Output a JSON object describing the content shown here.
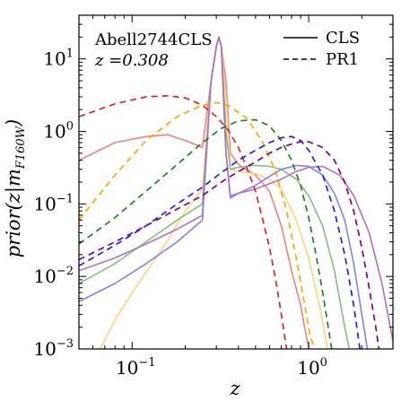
{
  "chart_data": {
    "type": "line",
    "xlabel": "z",
    "ylabel": "prior(z|m_F160W)",
    "xscale": "log",
    "yscale": "log",
    "xlim": [
      0.05,
      3.0
    ],
    "ylim": [
      0.001,
      40
    ],
    "x_ticks": [
      {
        "base": "10",
        "exp": "−1",
        "value": 0.1
      },
      {
        "base": "10",
        "exp": "0",
        "value": 1
      }
    ],
    "y_ticks": [
      {
        "base": "10",
        "exp": "1",
        "value": 10
      },
      {
        "base": "10",
        "exp": "0",
        "value": 1
      },
      {
        "base": "10",
        "exp": "−1",
        "value": 0.1
      },
      {
        "base": "10",
        "exp": "−2",
        "value": 0.01
      },
      {
        "base": "10",
        "exp": "−3",
        "value": 0.001
      }
    ],
    "annotations": {
      "cluster": "Abell2744CLS",
      "redshift": "z =0.308"
    },
    "legend": {
      "placement": "top-right",
      "entries": [
        {
          "label": "CLS",
          "style": "solid"
        },
        {
          "label": "PR1",
          "style": "dashed"
        }
      ]
    },
    "grid": false,
    "series": [
      {
        "style": "solid",
        "color": "#f08080",
        "points": [
          [
            0.05,
            0.4
          ],
          [
            0.08,
            0.7
          ],
          [
            0.12,
            0.85
          ],
          [
            0.16,
            0.9
          ],
          [
            0.2,
            0.75
          ],
          [
            0.25,
            0.6
          ],
          [
            0.28,
            5
          ],
          [
            0.3,
            15
          ],
          [
            0.31,
            20
          ],
          [
            0.32,
            15
          ],
          [
            0.34,
            5
          ],
          [
            0.36,
            0.5
          ],
          [
            0.4,
            0.35
          ],
          [
            0.5,
            0.25
          ],
          [
            0.6,
            0.15
          ],
          [
            0.7,
            0.05
          ],
          [
            0.8,
            0.012
          ],
          [
            0.9,
            0.004
          ],
          [
            1.0,
            0.001
          ]
        ]
      },
      {
        "style": "solid",
        "color": "#ffd27f",
        "points": [
          [
            0.066,
            0.001
          ],
          [
            0.08,
            0.0025
          ],
          [
            0.1,
            0.006
          ],
          [
            0.15,
            0.025
          ],
          [
            0.2,
            0.08
          ],
          [
            0.25,
            0.16
          ],
          [
            0.28,
            5
          ],
          [
            0.3,
            15
          ],
          [
            0.31,
            20
          ],
          [
            0.32,
            15
          ],
          [
            0.34,
            3
          ],
          [
            0.36,
            0.3
          ],
          [
            0.4,
            0.28
          ],
          [
            0.5,
            0.26
          ],
          [
            0.6,
            0.22
          ],
          [
            0.7,
            0.16
          ],
          [
            0.85,
            0.06
          ],
          [
            1.0,
            0.018
          ],
          [
            1.15,
            0.004
          ],
          [
            1.28,
            0.001
          ]
        ]
      },
      {
        "style": "solid",
        "color": "#80c080",
        "points": [
          [
            0.05,
            0.008
          ],
          [
            0.08,
            0.015
          ],
          [
            0.12,
            0.03
          ],
          [
            0.18,
            0.06
          ],
          [
            0.25,
            0.1
          ],
          [
            0.28,
            5
          ],
          [
            0.3,
            15
          ],
          [
            0.31,
            20
          ],
          [
            0.32,
            15
          ],
          [
            0.34,
            1
          ],
          [
            0.36,
            0.3
          ],
          [
            0.4,
            0.32
          ],
          [
            0.5,
            0.34
          ],
          [
            0.6,
            0.33
          ],
          [
            0.7,
            0.3
          ],
          [
            0.85,
            0.22
          ],
          [
            1.0,
            0.13
          ],
          [
            1.2,
            0.05
          ],
          [
            1.4,
            0.012
          ],
          [
            1.6,
            0.002
          ],
          [
            1.7,
            0.001
          ]
        ]
      },
      {
        "style": "solid",
        "color": "#8080f0",
        "points": [
          [
            0.05,
            0.0045
          ],
          [
            0.08,
            0.008
          ],
          [
            0.12,
            0.015
          ],
          [
            0.18,
            0.03
          ],
          [
            0.25,
            0.06
          ],
          [
            0.28,
            5
          ],
          [
            0.3,
            15
          ],
          [
            0.31,
            20
          ],
          [
            0.32,
            15
          ],
          [
            0.34,
            0.5
          ],
          [
            0.36,
            0.12
          ],
          [
            0.4,
            0.14
          ],
          [
            0.5,
            0.18
          ],
          [
            0.6,
            0.24
          ],
          [
            0.7,
            0.3
          ],
          [
            0.85,
            0.34
          ],
          [
            1.0,
            0.33
          ],
          [
            1.2,
            0.25
          ],
          [
            1.4,
            0.14
          ],
          [
            1.6,
            0.06
          ],
          [
            1.8,
            0.015
          ],
          [
            2.0,
            0.003
          ],
          [
            2.15,
            0.001
          ]
        ]
      },
      {
        "style": "solid",
        "color": "#b070c0",
        "points": [
          [
            0.05,
            0.012
          ],
          [
            0.08,
            0.018
          ],
          [
            0.12,
            0.028
          ],
          [
            0.18,
            0.045
          ],
          [
            0.25,
            0.07
          ],
          [
            0.28,
            5
          ],
          [
            0.3,
            15
          ],
          [
            0.31,
            20
          ],
          [
            0.32,
            15
          ],
          [
            0.34,
            0.5
          ],
          [
            0.36,
            0.13
          ],
          [
            0.4,
            0.14
          ],
          [
            0.5,
            0.16
          ],
          [
            0.6,
            0.19
          ],
          [
            0.7,
            0.22
          ],
          [
            0.85,
            0.28
          ],
          [
            1.0,
            0.32
          ],
          [
            1.2,
            0.33
          ],
          [
            1.5,
            0.25
          ],
          [
            1.8,
            0.13
          ],
          [
            2.2,
            0.04
          ],
          [
            2.6,
            0.008
          ],
          [
            2.9,
            0.002
          ],
          [
            3.0,
            0.0013
          ]
        ]
      },
      {
        "style": "dashed",
        "color": "#e02020",
        "points": [
          [
            0.05,
            1.6
          ],
          [
            0.08,
            2.4
          ],
          [
            0.12,
            3.0
          ],
          [
            0.16,
            3.1
          ],
          [
            0.2,
            2.9
          ],
          [
            0.25,
            2.3
          ],
          [
            0.3,
            1.6
          ],
          [
            0.35,
            1.05
          ],
          [
            0.4,
            0.6
          ],
          [
            0.45,
            0.3
          ],
          [
            0.5,
            0.15
          ],
          [
            0.55,
            0.06
          ],
          [
            0.6,
            0.025
          ],
          [
            0.65,
            0.009
          ],
          [
            0.7,
            0.003
          ],
          [
            0.75,
            0.001
          ]
        ]
      },
      {
        "style": "dashed",
        "color": "#ffa500",
        "points": [
          [
            0.05,
            0.06
          ],
          [
            0.08,
            0.25
          ],
          [
            0.12,
            0.75
          ],
          [
            0.18,
            1.6
          ],
          [
            0.25,
            2.3
          ],
          [
            0.3,
            2.5
          ],
          [
            0.35,
            2.3
          ],
          [
            0.45,
            1.5
          ],
          [
            0.55,
            0.7
          ],
          [
            0.65,
            0.28
          ],
          [
            0.75,
            0.08
          ],
          [
            0.85,
            0.018
          ],
          [
            0.95,
            0.004
          ],
          [
            1.02,
            0.0015
          ],
          [
            1.08,
            0.001
          ]
        ]
      },
      {
        "style": "dashed",
        "color": "#208020",
        "points": [
          [
            0.05,
            0.028
          ],
          [
            0.08,
            0.065
          ],
          [
            0.12,
            0.15
          ],
          [
            0.18,
            0.35
          ],
          [
            0.25,
            0.7
          ],
          [
            0.32,
            1.1
          ],
          [
            0.4,
            1.4
          ],
          [
            0.5,
            1.45
          ],
          [
            0.6,
            1.2
          ],
          [
            0.7,
            0.75
          ],
          [
            0.8,
            0.4
          ],
          [
            0.9,
            0.18
          ],
          [
            1.0,
            0.065
          ],
          [
            1.1,
            0.02
          ],
          [
            1.2,
            0.006
          ],
          [
            1.3,
            0.0018
          ],
          [
            1.35,
            0.001
          ]
        ]
      },
      {
        "style": "dashed",
        "color": "#2020e0",
        "points": [
          [
            0.05,
            0.014
          ],
          [
            0.08,
            0.027
          ],
          [
            0.12,
            0.05
          ],
          [
            0.18,
            0.1
          ],
          [
            0.25,
            0.17
          ],
          [
            0.32,
            0.27
          ],
          [
            0.4,
            0.4
          ],
          [
            0.5,
            0.55
          ],
          [
            0.6,
            0.7
          ],
          [
            0.7,
            0.82
          ],
          [
            0.8,
            0.85
          ],
          [
            0.9,
            0.75
          ],
          [
            1.0,
            0.55
          ],
          [
            1.2,
            0.25
          ],
          [
            1.4,
            0.08
          ],
          [
            1.6,
            0.02
          ],
          [
            1.8,
            0.004
          ],
          [
            1.95,
            0.001
          ]
        ]
      },
      {
        "style": "dashed",
        "color": "#800080",
        "points": [
          [
            0.05,
            0.017
          ],
          [
            0.08,
            0.03
          ],
          [
            0.12,
            0.05
          ],
          [
            0.18,
            0.085
          ],
          [
            0.25,
            0.13
          ],
          [
            0.32,
            0.2
          ],
          [
            0.4,
            0.28
          ],
          [
            0.5,
            0.38
          ],
          [
            0.6,
            0.5
          ],
          [
            0.7,
            0.6
          ],
          [
            0.8,
            0.67
          ],
          [
            0.9,
            0.72
          ],
          [
            1.0,
            0.72
          ],
          [
            1.2,
            0.6
          ],
          [
            1.4,
            0.4
          ],
          [
            1.6,
            0.2
          ],
          [
            1.8,
            0.08
          ],
          [
            2.0,
            0.025
          ],
          [
            2.2,
            0.007
          ],
          [
            2.4,
            0.002
          ],
          [
            2.5,
            0.001
          ]
        ]
      }
    ]
  }
}
